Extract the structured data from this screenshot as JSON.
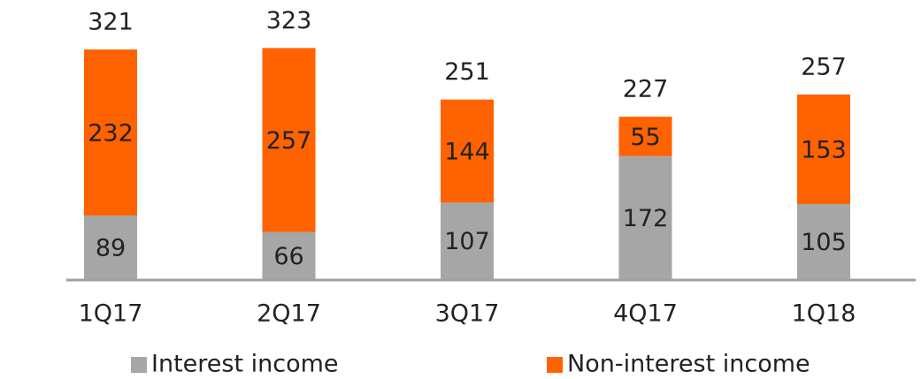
{
  "chart_data": {
    "type": "stacked-bar",
    "categories": [
      "1Q17",
      "2Q17",
      "3Q17",
      "4Q17",
      "1Q18"
    ],
    "series": [
      {
        "name": "Interest income",
        "color": "#a6a6a6",
        "values": [
          89,
          66,
          107,
          172,
          105
        ]
      },
      {
        "name": "Non-interest income",
        "color": "#ff6200",
        "values": [
          232,
          257,
          144,
          55,
          153
        ]
      }
    ],
    "totals": [
      321,
      323,
      251,
      227,
      257
    ]
  }
}
